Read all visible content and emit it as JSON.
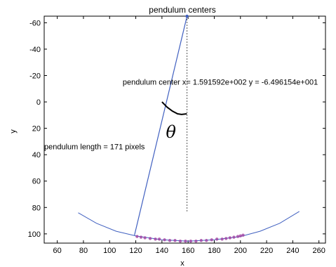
{
  "chart_data": {
    "type": "line",
    "title": "pendulum centers",
    "xlabel": "x",
    "ylabel": "y",
    "xlim": [
      50,
      265
    ],
    "ylim": [
      -65,
      107
    ],
    "y_reversed": true,
    "grid": false,
    "xticks": [
      60,
      80,
      100,
      120,
      140,
      160,
      180,
      200,
      220,
      240,
      260
    ],
    "yticks": [
      -60,
      -40,
      -20,
      0,
      20,
      40,
      60,
      80,
      100
    ],
    "pivot": {
      "x": 159.1592,
      "y": -64.96154
    },
    "bob": {
      "x": 119,
      "y": 101
    },
    "arc": {
      "color": "#4060c0",
      "points": [
        [
          76,
          84
        ],
        [
          90,
          92
        ],
        [
          105,
          98
        ],
        [
          120,
          101.5
        ],
        [
          140,
          104.5
        ],
        [
          160,
          105.5
        ],
        [
          180,
          104.5
        ],
        [
          200,
          102
        ],
        [
          215,
          98
        ],
        [
          230,
          92
        ],
        [
          245,
          83
        ]
      ]
    },
    "centers": {
      "color": "#a040a0",
      "points": [
        [
          121,
          102
        ],
        [
          124,
          102.5
        ],
        [
          127,
          103
        ],
        [
          131,
          103.5
        ],
        [
          135,
          104
        ],
        [
          138,
          104
        ],
        [
          142,
          104.5
        ],
        [
          146,
          105
        ],
        [
          150,
          105
        ],
        [
          154,
          105.5
        ],
        [
          158,
          105.5
        ],
        [
          162,
          105.5
        ],
        [
          166,
          105.5
        ],
        [
          170,
          105
        ],
        [
          174,
          105
        ],
        [
          178,
          104.5
        ],
        [
          182,
          104
        ],
        [
          186,
          104
        ],
        [
          189,
          103.5
        ],
        [
          192,
          103
        ],
        [
          195,
          102.5
        ],
        [
          198,
          102
        ],
        [
          200,
          101.5
        ],
        [
          202,
          101
        ]
      ]
    },
    "vertical_line": {
      "x": 159.1592,
      "y_from": -65,
      "y_to": 83
    },
    "angle_curve": [
      [
        140,
        0
      ],
      [
        144,
        4
      ],
      [
        148,
        7
      ],
      [
        152,
        9
      ],
      [
        155,
        9.5
      ],
      [
        159,
        9
      ]
    ],
    "annotations": {
      "center_text": "pendulum center x= 1.591592e+002 y = -6.496154e+001",
      "length_text": "pendulum length = 171 pixels",
      "theta": "θ"
    },
    "theta_pos": {
      "x": 143,
      "y": 27
    },
    "center_text_pos": {
      "x": 110,
      "y": -13
    },
    "length_text_pos": {
      "x": 50,
      "y": 36
    }
  }
}
